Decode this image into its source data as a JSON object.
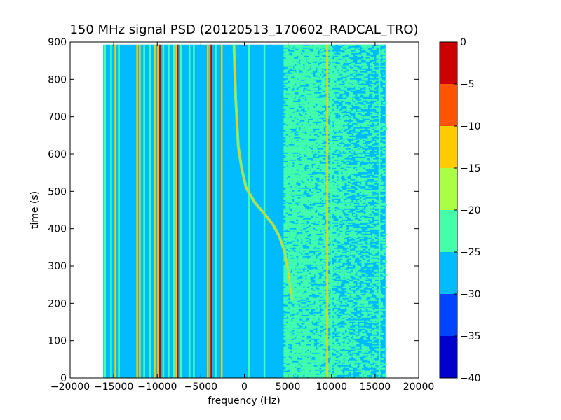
{
  "chart_data": {
    "type": "heatmap",
    "title": "150 MHz signal PSD (20120513_170602_RADCAL_TRO)",
    "xlabel": "frequency (Hz)",
    "ylabel": "time (s)",
    "xlim": [
      -20000,
      20000
    ],
    "ylim": [
      0,
      900
    ],
    "xticks": [
      -20000,
      -15000,
      -10000,
      -5000,
      0,
      5000,
      10000,
      15000,
      20000
    ],
    "xtick_labels": [
      "−20000",
      "−15000",
      "−10000",
      "−5000",
      "0",
      "5000",
      "10000",
      "15000",
      "20000"
    ],
    "yticks": [
      0,
      100,
      200,
      300,
      400,
      500,
      600,
      700,
      800,
      900
    ],
    "ytick_labels": [
      "0",
      "100",
      "200",
      "300",
      "400",
      "500",
      "600",
      "700",
      "800",
      "900"
    ],
    "data_extent": {
      "freq": [
        -16200,
        16200
      ],
      "time": [
        0,
        893
      ]
    },
    "background_level": -27,
    "noisy_band_level": -22,
    "noisy_band_freq": [
      4500,
      16000
    ],
    "colorbar": {
      "levels": [
        -40,
        -35,
        -30,
        -25,
        -20,
        -15,
        -10,
        -5,
        0
      ],
      "tick_labels": [
        "−40",
        "−35",
        "−30",
        "−25",
        "−20",
        "−15",
        "−10",
        "−5",
        "0"
      ],
      "colors": [
        "#0000cc",
        "#0044ff",
        "#00bbff",
        "#44ffaa",
        "#aaff44",
        "#ffcc00",
        "#ff5500",
        "#cc0000"
      ]
    },
    "lines": [
      {
        "freq": -16000,
        "level": -22
      },
      {
        "freq": -15300,
        "level": -22
      },
      {
        "freq": -14800,
        "level": -15
      },
      {
        "freq": -14400,
        "level": -22
      },
      {
        "freq": -12300,
        "level": -15
      },
      {
        "freq": -12000,
        "level": -12
      },
      {
        "freq": -11500,
        "level": -22
      },
      {
        "freq": -10800,
        "level": -22
      },
      {
        "freq": -10300,
        "level": -15
      },
      {
        "freq": -9900,
        "level": -12
      },
      {
        "freq": -9700,
        "level": -3
      },
      {
        "freq": -9300,
        "level": -22
      },
      {
        "freq": -8700,
        "level": -22
      },
      {
        "freq": -8100,
        "level": -22
      },
      {
        "freq": -7800,
        "level": -12
      },
      {
        "freq": -7650,
        "level": -3
      },
      {
        "freq": -7300,
        "level": -22
      },
      {
        "freq": -6300,
        "level": -22
      },
      {
        "freq": -5800,
        "level": -22
      },
      {
        "freq": -4200,
        "level": -12
      },
      {
        "freq": -3800,
        "level": -3
      },
      {
        "freq": -3300,
        "level": -22
      },
      {
        "freq": -2600,
        "level": -15
      },
      {
        "freq": 500,
        "level": -22
      },
      {
        "freq": 2300,
        "level": -22
      },
      {
        "freq": 9500,
        "level": -15
      },
      {
        "freq": 10000,
        "level": -22
      },
      {
        "freq": 15500,
        "level": -22
      }
    ],
    "drift_track": {
      "level": -12,
      "points": [
        {
          "freq": -1200,
          "time": 893
        },
        {
          "freq": -1000,
          "time": 750
        },
        {
          "freq": -700,
          "time": 620
        },
        {
          "freq": -300,
          "time": 560
        },
        {
          "freq": 200,
          "time": 510
        },
        {
          "freq": 1200,
          "time": 470
        },
        {
          "freq": 2300,
          "time": 440
        },
        {
          "freq": 3300,
          "time": 410
        },
        {
          "freq": 4000,
          "time": 380
        },
        {
          "freq": 4600,
          "time": 340
        },
        {
          "freq": 5000,
          "time": 290
        },
        {
          "freq": 5300,
          "time": 240
        },
        {
          "freq": 5500,
          "time": 210
        }
      ]
    }
  }
}
